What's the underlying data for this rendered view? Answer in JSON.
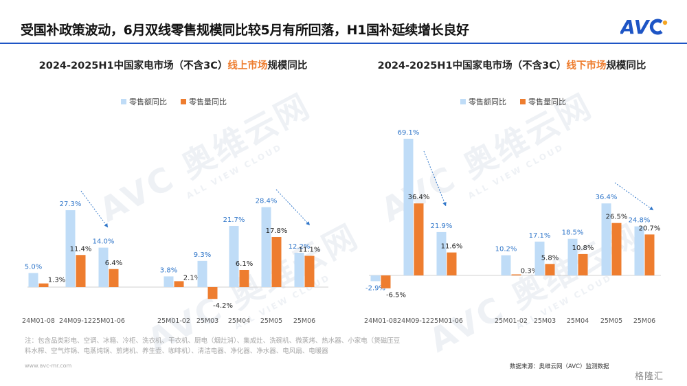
{
  "headline": "受国补政策波动，6月双线零售规模同比较5月有所回落，H1国补延续增长良好",
  "brand": {
    "logo_text": "AVC",
    "accent_color": "#1e55c5",
    "logo_colors": [
      "#1e55c5",
      "#f5a623"
    ]
  },
  "watermark": {
    "text": "AVC 奥维云网",
    "subtext": "ALL VIEW CLOUD"
  },
  "colors": {
    "amount": "#bfdcf7",
    "volume": "#ee7d2f",
    "label_amount": "#2e75c9",
    "label_volume": "#222222",
    "trend_arrow": "#2e75c9"
  },
  "chart_data": [
    {
      "type": "bar",
      "title_prefix": "2024-2025H1中国家电市场（不含3C）",
      "title_highlight": "线上市场",
      "title_suffix": "规模同比",
      "legend": {
        "position": "top-center"
      },
      "categories": [
        "24M01-08",
        "24M09-12",
        "25M01-06",
        "25M01-02",
        "25M03",
        "25M04",
        "25M05",
        "25M06"
      ],
      "series": [
        {
          "name": "零售额同比",
          "values": [
            5.0,
            27.3,
            14.0,
            3.8,
            9.3,
            21.7,
            28.4,
            12.2
          ],
          "labels": [
            "5.0%",
            "27.3%",
            "14.0%",
            "3.8%",
            "9.3%",
            "21.7%",
            "28.4%",
            "12.2%"
          ]
        },
        {
          "name": "零售量同比",
          "values": [
            1.3,
            11.4,
            6.4,
            2.1,
            -4.2,
            6.1,
            17.8,
            11.1
          ],
          "labels": [
            "1.3%",
            "11.4%",
            "6.4%",
            "2.1%",
            "-4.2%",
            "6.1%",
            "17.8%",
            "11.1%"
          ]
        }
      ],
      "annotations": [
        "downward trend arrow 24M09-12 → 25M01-06",
        "downward trend arrow 25M05 → 25M06"
      ]
    },
    {
      "type": "bar",
      "title_prefix": "2024-2025H1中国家电市场（不含3C）",
      "title_highlight": "线下市场",
      "title_suffix": "规模同比",
      "legend": {
        "position": "top-center"
      },
      "categories": [
        "24M01-08",
        "24M09-12",
        "25M01-06",
        "25M01-02",
        "25M03",
        "25M04",
        "25M05",
        "25M06"
      ],
      "series": [
        {
          "name": "零售额同比",
          "values": [
            -2.9,
            69.1,
            21.9,
            10.2,
            17.1,
            18.5,
            36.4,
            24.8
          ],
          "labels": [
            "-2.9%",
            "69.1%",
            "21.9%",
            "10.2%",
            "17.1%",
            "18.5%",
            "36.4%",
            "24.8%"
          ]
        },
        {
          "name": "零售量同比",
          "values": [
            -6.5,
            36.4,
            11.6,
            0.3,
            5.8,
            10.8,
            26.5,
            20.7
          ],
          "labels": [
            "-6.5%",
            "36.4%",
            "11.6%",
            "0.3%",
            "5.8%",
            "10.8%",
            "26.5%",
            "20.7%"
          ]
        }
      ],
      "annotations": [
        "downward trend arrow 24M09-12 → 25M01-06",
        "downward trend arrow 25M05 → 25M06"
      ]
    }
  ],
  "footnote": {
    "line1": "注：包含品类彩电、空调、冰箱、冷柜、洗衣机、干衣机、厨电（烟灶消）、集成灶、洗碗机、微蒸烤、热水器、小家电（煲磁压豆",
    "line2": "料水榨、空气炸锅、电蒸炖锅、煎烤机、养生壶、咖啡机）、清洁电器、净化器、净水器、电风扇、电暖器"
  },
  "url": "www.avc-mr.com",
  "source": "数据来源：奥维云网（AVC）监测数据",
  "corner_mark": "格隆汇"
}
